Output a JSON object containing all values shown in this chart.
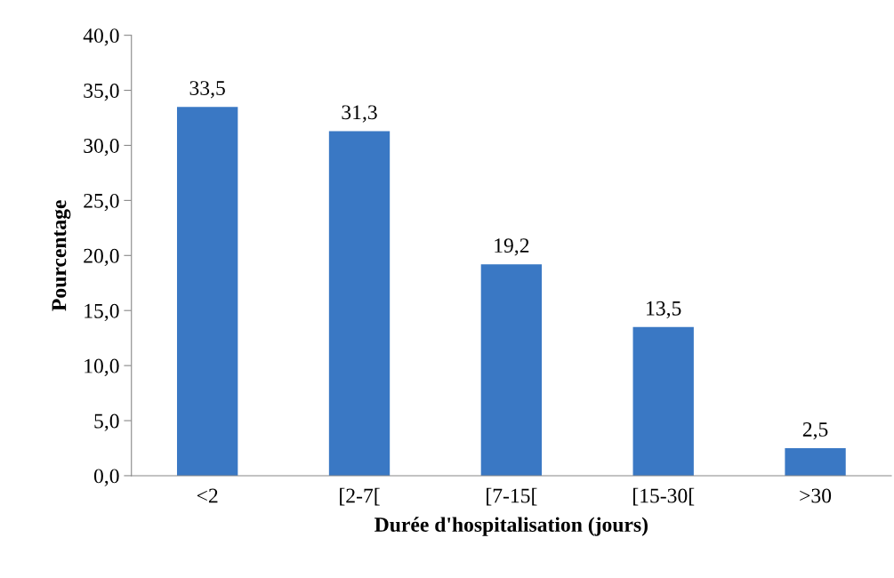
{
  "chart_data": {
    "type": "bar",
    "xlabel": "Durée d'hospitalisation (jours)",
    "ylabel": "Pourcentage",
    "categories": [
      "<2",
      "[2-7[",
      "[7-15[",
      "[15-30[",
      ">30"
    ],
    "values": [
      33.5,
      31.3,
      19.2,
      13.5,
      2.5
    ],
    "value_labels": [
      "33,5",
      "31,3",
      "19,2",
      "13,5",
      "2,5"
    ],
    "color": "#3a78c4",
    "ylim": [
      0,
      40
    ],
    "yticks": [
      {
        "value": 0,
        "label": "0,0"
      },
      {
        "value": 5,
        "label": "5,0"
      },
      {
        "value": 10,
        "label": "10,0"
      },
      {
        "value": 15,
        "label": "15,0"
      },
      {
        "value": 20,
        "label": "20,0"
      },
      {
        "value": 25,
        "label": "25,0"
      },
      {
        "value": 30,
        "label": "30,0"
      },
      {
        "value": 35,
        "label": "35,0"
      },
      {
        "value": 40,
        "label": "40,0"
      }
    ],
    "grid": false,
    "legend": false
  }
}
